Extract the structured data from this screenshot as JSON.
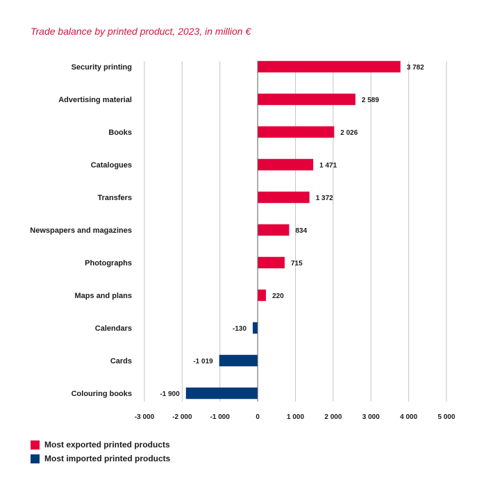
{
  "chart_data": {
    "type": "bar",
    "orientation": "horizontal",
    "title": "Trade balance by printed product, 2023, in million €",
    "categories": [
      "Security printing",
      "Advertising material",
      "Books",
      "Catalogues",
      "Transfers",
      "Newspapers and magazines",
      "Photographs",
      "Maps and plans",
      "Calendars",
      "Cards",
      "Colouring books"
    ],
    "values": [
      3782,
      2589,
      2026,
      1471,
      1372,
      834,
      715,
      220,
      -130,
      -1019,
      -1900
    ],
    "value_labels": [
      "3 782",
      "2 589",
      "2 026",
      "1 471",
      "1 372",
      "834",
      "715",
      "220",
      "-130",
      "-1 019",
      "-1 900"
    ],
    "xlim": [
      -3000,
      5000
    ],
    "x_ticks": [
      -3000,
      -2000,
      -1000,
      0,
      1000,
      2000,
      3000,
      4000,
      5000
    ],
    "x_tick_labels": [
      "-3 000",
      "-2 000",
      "-1 000",
      "0",
      "1 000",
      "2 000",
      "3 000",
      "4 000",
      "5 000"
    ],
    "grid": "vertical",
    "legend": {
      "position": "bottom-left",
      "items": [
        {
          "label": "Most exported printed products",
          "color": "#e4003b"
        },
        {
          "label": "Most imported printed products",
          "color": "#003a78"
        }
      ]
    },
    "colors": {
      "positive": "#e4003b",
      "negative": "#003a78",
      "title": "#d1143c",
      "grid": "#c4c4c4"
    }
  }
}
